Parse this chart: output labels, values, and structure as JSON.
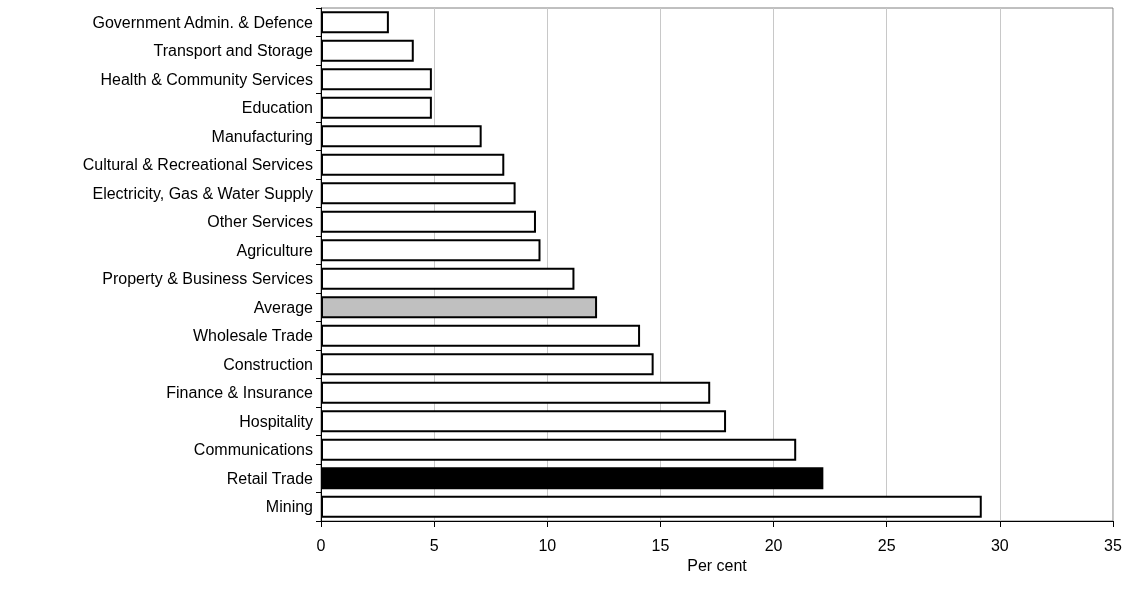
{
  "chart_data": {
    "type": "bar",
    "orientation": "horizontal",
    "xlabel": "Per cent",
    "categories": [
      "Government Admin. & Defence",
      "Transport and Storage",
      "Health & Community Services",
      "Education",
      "Manufacturing",
      "Cultural & Recreational Services",
      "Electricity, Gas & Water Supply",
      "Other Services",
      "Agriculture",
      "Property & Business Services",
      "Average",
      "Wholesale Trade",
      "Construction",
      "Finance & Insurance",
      "Hospitality",
      "Communications",
      "Retail Trade",
      "Mining"
    ],
    "values": [
      3.0,
      4.1,
      4.9,
      4.9,
      7.1,
      8.1,
      8.6,
      9.5,
      9.7,
      11.2,
      12.2,
      14.1,
      14.7,
      17.2,
      17.9,
      21.0,
      22.2,
      29.2
    ],
    "colors": [
      "#ffffff",
      "#ffffff",
      "#ffffff",
      "#ffffff",
      "#ffffff",
      "#ffffff",
      "#ffffff",
      "#ffffff",
      "#ffffff",
      "#ffffff",
      "#c0c0c0",
      "#ffffff",
      "#ffffff",
      "#ffffff",
      "#ffffff",
      "#ffffff",
      "#000000",
      "#ffffff"
    ],
    "xlim": [
      0,
      35
    ],
    "xticks": [
      0,
      5,
      10,
      15,
      20,
      25,
      30,
      35
    ],
    "grid": "x"
  }
}
